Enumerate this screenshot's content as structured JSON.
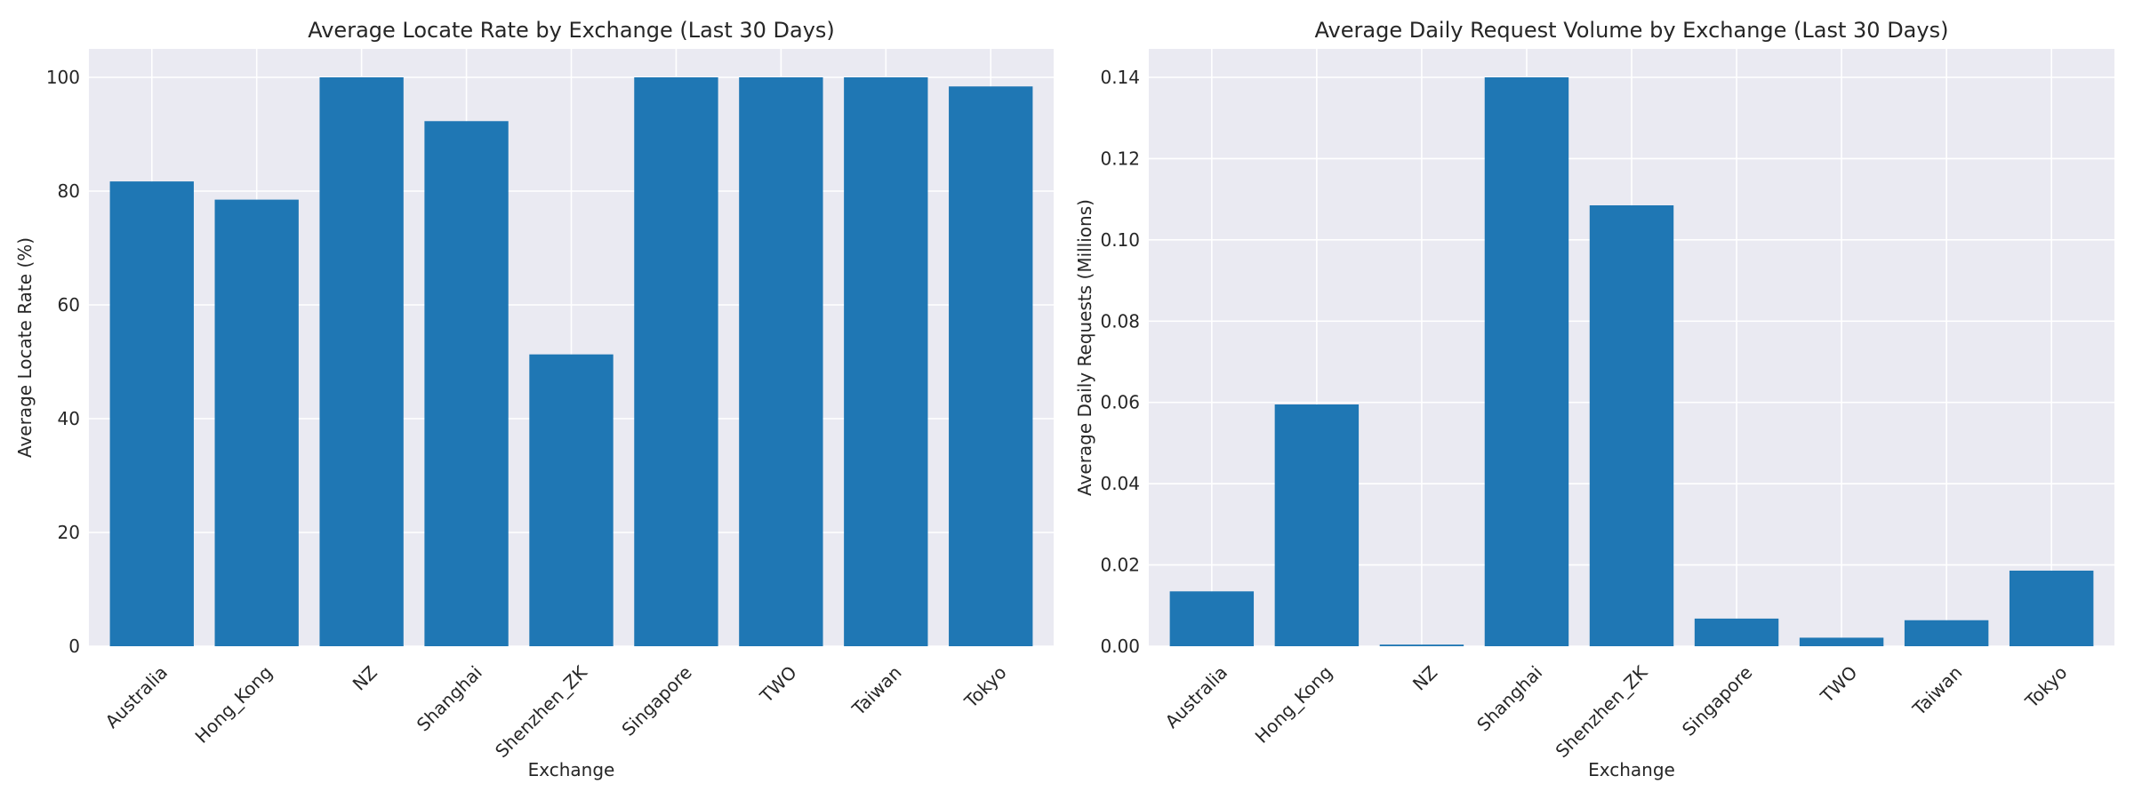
{
  "chart_data": [
    {
      "type": "bar",
      "title": "Average Locate Rate by Exchange (Last 30 Days)",
      "xlabel": "Exchange",
      "ylabel": "Average Locate Rate (%)",
      "categories": [
        "Australia",
        "Hong_Kong",
        "NZ",
        "Shanghai",
        "Shenzhen_ZK",
        "Singapore",
        "TWO",
        "Taiwan",
        "Tokyo"
      ],
      "values": [
        81.7,
        78.5,
        100.0,
        92.3,
        51.3,
        100.0,
        100.0,
        100.0,
        98.4
      ],
      "ylim": [
        0,
        105
      ],
      "yticks": [
        0,
        20,
        40,
        60,
        80,
        100
      ],
      "ytick_labels": [
        "0",
        "20",
        "40",
        "60",
        "80",
        "100"
      ],
      "grid": true,
      "bar_color": "#1f77b4",
      "background_color": "#eaeaf2"
    },
    {
      "type": "bar",
      "title": "Average Daily Request Volume by Exchange (Last 30 Days)",
      "xlabel": "Exchange",
      "ylabel": "Average Daily Requests (Millions)",
      "categories": [
        "Australia",
        "Hong_Kong",
        "NZ",
        "Shanghai",
        "Shenzhen_ZK",
        "Singapore",
        "TWO",
        "Taiwan",
        "Tokyo"
      ],
      "values": [
        0.0135,
        0.0595,
        0.0004,
        0.14,
        0.1085,
        0.0068,
        0.0021,
        0.0064,
        0.0186
      ],
      "ylim": [
        0,
        0.147
      ],
      "yticks": [
        0,
        0.02,
        0.04,
        0.06,
        0.08,
        0.1,
        0.12,
        0.14
      ],
      "ytick_labels": [
        "0.00",
        "0.02",
        "0.04",
        "0.06",
        "0.08",
        "0.10",
        "0.12",
        "0.14"
      ],
      "grid": true,
      "bar_color": "#1f77b4",
      "background_color": "#eaeaf2"
    }
  ]
}
